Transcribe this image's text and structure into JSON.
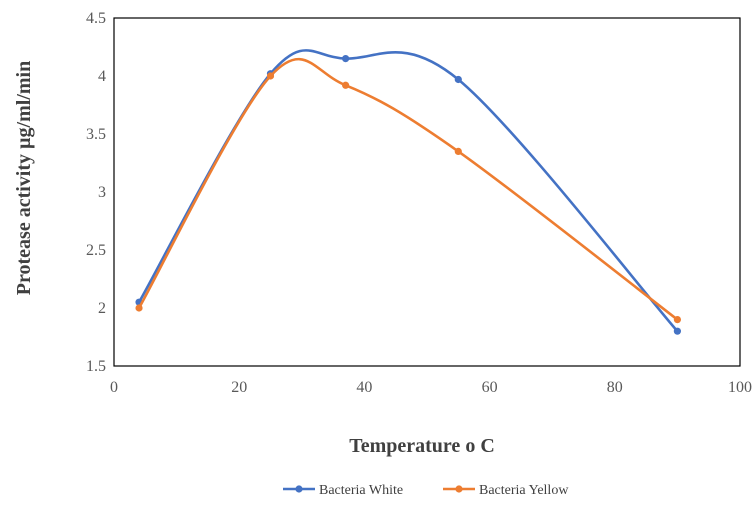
{
  "chart_data": {
    "type": "scatter",
    "title": "",
    "xlabel": "Temperature o C",
    "ylabel": "Protease activity  µg/ml/min",
    "xlim": [
      0,
      100
    ],
    "ylim": [
      1.5,
      4.5
    ],
    "x_ticks": [
      "0",
      "20",
      "40",
      "60",
      "80",
      "100"
    ],
    "y_ticks": [
      "1.5",
      "2",
      "2.5",
      "3",
      "3.5",
      "4",
      "4.5"
    ],
    "grid": false,
    "smooth_lines": true,
    "legend_position": "bottom",
    "series": [
      {
        "name": "Bacteria White",
        "color": "#4472C4",
        "x": [
          4,
          25,
          37,
          55,
          90
        ],
        "y": [
          2.05,
          4.02,
          4.15,
          3.97,
          1.8
        ]
      },
      {
        "name": "Bacteria Yellow",
        "color": "#ED7D31",
        "x": [
          4,
          25,
          37,
          55,
          90
        ],
        "y": [
          2.0,
          4.0,
          3.92,
          3.35,
          1.9
        ]
      }
    ]
  }
}
